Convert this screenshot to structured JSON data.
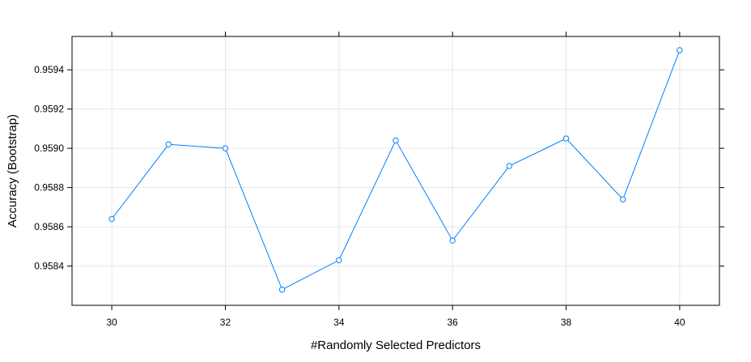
{
  "chart_data": {
    "type": "line",
    "title": "",
    "xlabel": "#Randomly Selected Predictors",
    "ylabel": "Accuracy (Bootstrap)",
    "x": [
      30,
      31,
      32,
      33,
      34,
      35,
      36,
      37,
      38,
      39,
      40
    ],
    "series": [
      {
        "values": [
          0.95864,
          0.95902,
          0.959,
          0.95828,
          0.95843,
          0.95904,
          0.95853,
          0.95891,
          0.95905,
          0.95874,
          0.9595
        ]
      }
    ],
    "x_ticks": [
      30,
      32,
      34,
      36,
      38,
      40
    ],
    "x_tick_labels": [
      "30",
      "32",
      "34",
      "36",
      "38",
      "40"
    ],
    "y_ticks": [
      0.9584,
      0.9586,
      0.9588,
      0.959,
      0.9592,
      0.9594
    ],
    "y_tick_labels": [
      "0.9584",
      "0.9586",
      "0.9588",
      "0.9590",
      "0.9592",
      "0.9594"
    ],
    "xlim": [
      29.3,
      40.7
    ],
    "ylim": [
      0.9582,
      0.95957
    ],
    "grid": true,
    "legend": "none",
    "colors": {
      "series": "#0080ff",
      "grid": "#e6e6e6",
      "frame": "#000000"
    }
  }
}
